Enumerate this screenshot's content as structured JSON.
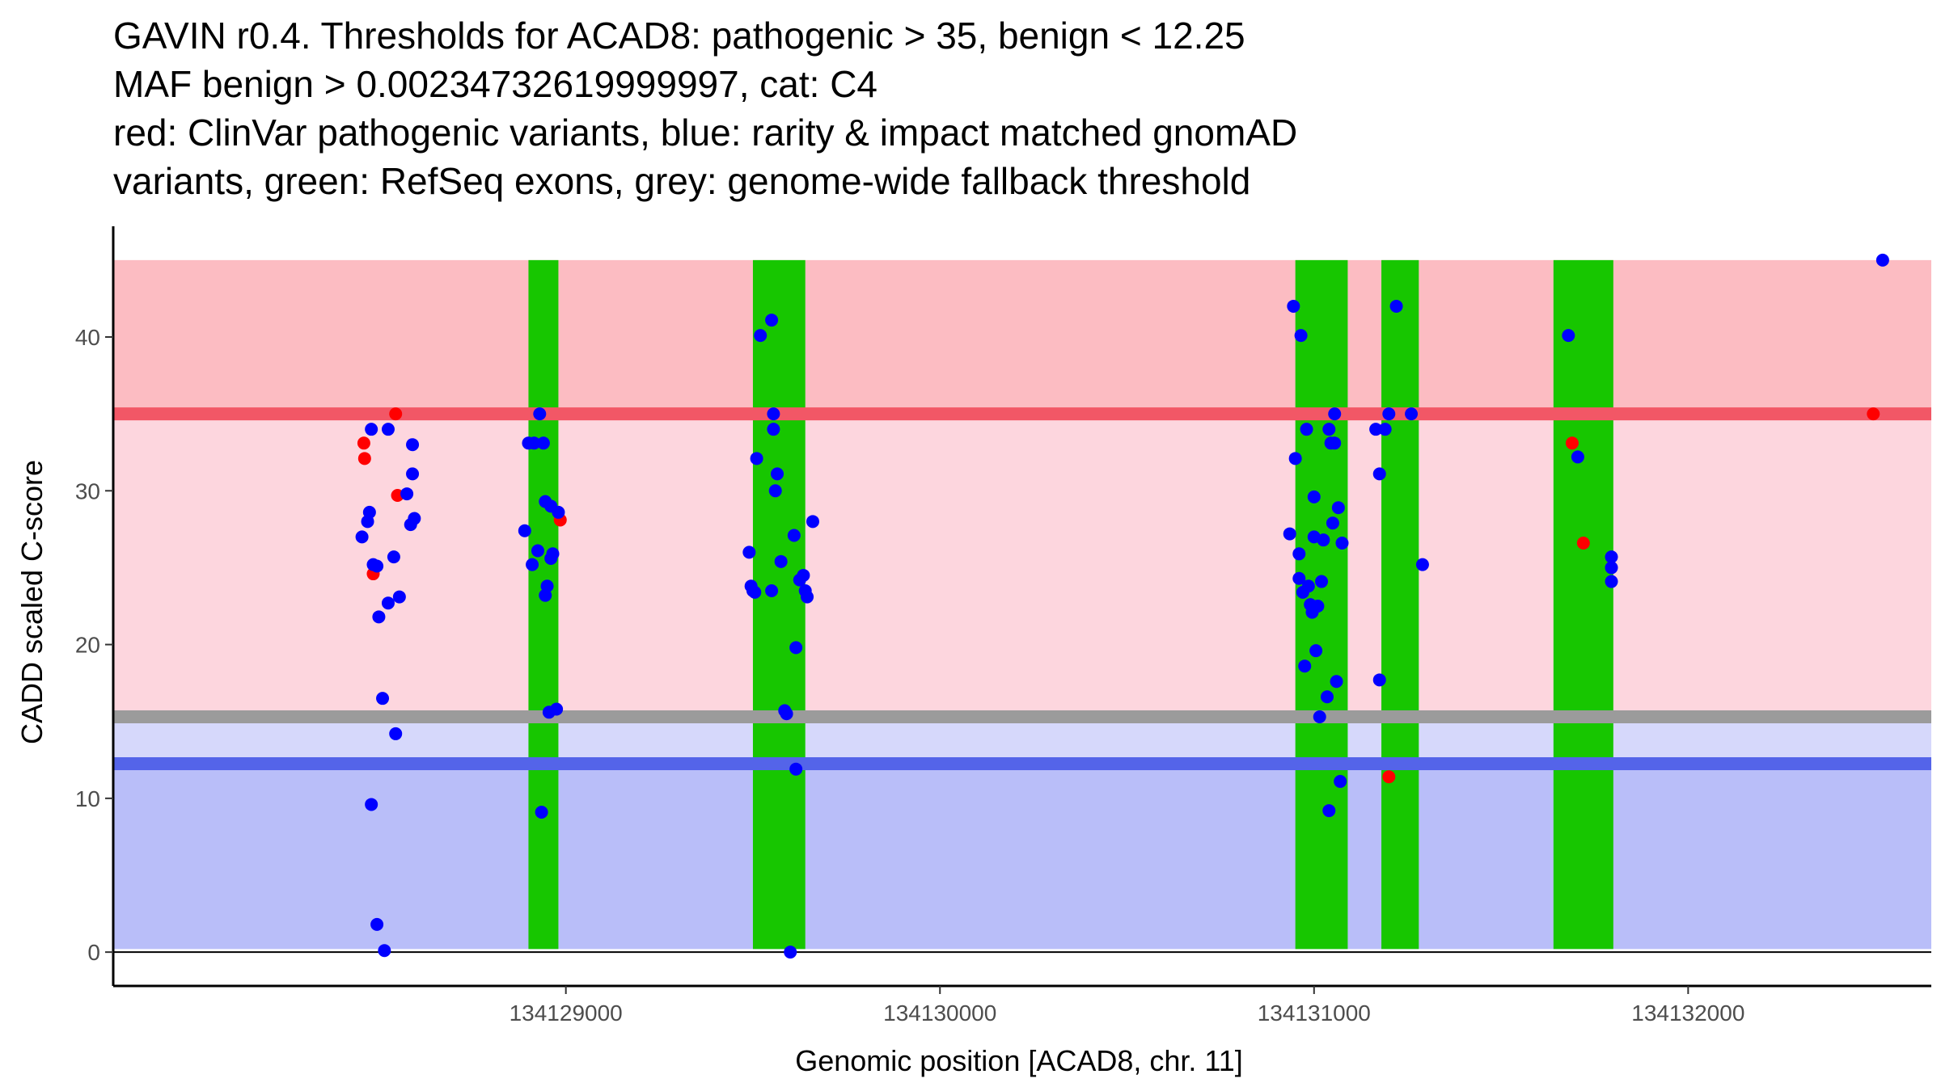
{
  "chart_data": {
    "type": "scatter",
    "title_lines": [
      "GAVIN r0.4. Thresholds for ACAD8: pathogenic > 35, benign < 12.25",
      "MAF benign > 0.00234732619999997, cat: C4",
      "red: ClinVar pathogenic variants, blue: rarity & impact matched gnomAD",
      "variants, green: RefSeq exons, grey: genome-wide fallback threshold"
    ],
    "xlabel": "Genomic position [ACAD8, chr. 11]",
    "ylabel": "CADD scaled C-score",
    "xlim": [
      134127790,
      134132650
    ],
    "ylim": [
      -2.2,
      47.2
    ],
    "x_ticks": [
      {
        "value": 134129000,
        "label": "134129000"
      },
      {
        "value": 134130000,
        "label": "134130000"
      },
      {
        "value": 134131000,
        "label": "134131000"
      },
      {
        "value": 134132000,
        "label": "134132000"
      }
    ],
    "y_ticks": [
      {
        "value": 0,
        "label": "0"
      },
      {
        "value": 10,
        "label": "10"
      },
      {
        "value": 20,
        "label": "20"
      },
      {
        "value": 30,
        "label": "30"
      },
      {
        "value": 40,
        "label": "40"
      }
    ],
    "thresholds": {
      "pathogenic": 35,
      "benign": 12.25,
      "fallback": 15.3,
      "maf_benign": 0.00234732619999997,
      "category": "C4"
    },
    "bands": [
      {
        "name": "pathogenic-region-band",
        "ymin": 35,
        "ymax": 45,
        "color": "#fcbcc2"
      },
      {
        "name": "intermediate-region-band",
        "ymin": 15.3,
        "ymax": 35,
        "color": "#fdd6de"
      },
      {
        "name": "fallback-lower-band",
        "ymin": 12.25,
        "ymax": 15.3,
        "color": "#d6d8fb"
      },
      {
        "name": "benign-region-band",
        "ymin": 0.2,
        "ymax": 12.25,
        "color": "#b9bef9"
      }
    ],
    "threshold_lines": [
      {
        "name": "pathogenic-threshold-line",
        "y": 35,
        "color": "#f25766"
      },
      {
        "name": "fallback-threshold-line",
        "y": 15.3,
        "color": "#9b9b9b"
      },
      {
        "name": "benign-threshold-line",
        "y": 12.25,
        "color": "#5464e9"
      }
    ],
    "exons": [
      {
        "start": 134128900,
        "end": 134128980
      },
      {
        "start": 134129500,
        "end": 134129640
      },
      {
        "start": 134130950,
        "end": 134131090
      },
      {
        "start": 134131180,
        "end": 134131280
      },
      {
        "start": 134131640,
        "end": 134131800
      }
    ],
    "exon_ymin": 0.2,
    "exon_ymax": 45,
    "exon_color": "#17c600",
    "series": [
      {
        "name": "ClinVar pathogenic variants",
        "color": "#ff0000",
        "points": [
          [
            134128460,
            33.1
          ],
          [
            134128462,
            32.1
          ],
          [
            134128485,
            24.6
          ],
          [
            134128545,
            35.0
          ],
          [
            134128550,
            29.7
          ],
          [
            134128985,
            28.1
          ],
          [
            134131200,
            11.4
          ],
          [
            134131690,
            33.1
          ],
          [
            134131720,
            26.6
          ],
          [
            134132495,
            35.0
          ]
        ]
      },
      {
        "name": "rarity & impact matched gnomAD variants",
        "color": "#0000ff",
        "points": [
          [
            134128455,
            27.0
          ],
          [
            134128470,
            28.0
          ],
          [
            134128475,
            28.6
          ],
          [
            134128480,
            34.0
          ],
          [
            134128480,
            9.6
          ],
          [
            134128485,
            25.2
          ],
          [
            134128495,
            1.8
          ],
          [
            134128495,
            25.1
          ],
          [
            134128500,
            21.8
          ],
          [
            134128510,
            16.5
          ],
          [
            134128515,
            0.1
          ],
          [
            134128525,
            34.0
          ],
          [
            134128525,
            22.7
          ],
          [
            134128540,
            25.7
          ],
          [
            134128545,
            14.2
          ],
          [
            134128555,
            23.1
          ],
          [
            134128575,
            29.8
          ],
          [
            134128585,
            27.8
          ],
          [
            134128590,
            31.1
          ],
          [
            134128590,
            33.0
          ],
          [
            134128595,
            28.2
          ],
          [
            134128890,
            27.4
          ],
          [
            134128900,
            33.1
          ],
          [
            134128910,
            25.2
          ],
          [
            134128915,
            33.1
          ],
          [
            134128925,
            26.1
          ],
          [
            134128930,
            35.0
          ],
          [
            134128935,
            9.1
          ],
          [
            134128940,
            33.1
          ],
          [
            134128945,
            29.3
          ],
          [
            134128945,
            23.2
          ],
          [
            134128950,
            23.8
          ],
          [
            134128955,
            15.6
          ],
          [
            134128960,
            29.0
          ],
          [
            134128960,
            25.6
          ],
          [
            134128965,
            25.9
          ],
          [
            134128975,
            15.8
          ],
          [
            134128980,
            28.6
          ],
          [
            134129490,
            26.0
          ],
          [
            134129495,
            23.8
          ],
          [
            134129500,
            23.5
          ],
          [
            134129505,
            23.4
          ],
          [
            134129510,
            32.1
          ],
          [
            134129520,
            40.1
          ],
          [
            134129550,
            23.5
          ],
          [
            134129550,
            41.1
          ],
          [
            134129555,
            35.0
          ],
          [
            134129555,
            34.0
          ],
          [
            134129560,
            30.0
          ],
          [
            134129565,
            31.1
          ],
          [
            134129575,
            25.4
          ],
          [
            134129585,
            15.7
          ],
          [
            134129590,
            15.5
          ],
          [
            134129600,
            0.0
          ],
          [
            134129610,
            27.1
          ],
          [
            134129615,
            11.9
          ],
          [
            134129615,
            19.8
          ],
          [
            134129625,
            24.2
          ],
          [
            134129635,
            24.5
          ],
          [
            134129640,
            23.5
          ],
          [
            134129645,
            23.1
          ],
          [
            134129660,
            28.0
          ],
          [
            134130935,
            27.2
          ],
          [
            134130945,
            42.0
          ],
          [
            134130950,
            32.1
          ],
          [
            134130960,
            24.3
          ],
          [
            134130960,
            25.9
          ],
          [
            134130965,
            40.1
          ],
          [
            134130970,
            23.4
          ],
          [
            134130975,
            18.6
          ],
          [
            134130980,
            34.0
          ],
          [
            134130985,
            23.8
          ],
          [
            134130990,
            22.6
          ],
          [
            134130995,
            22.1
          ],
          [
            134131000,
            29.6
          ],
          [
            134131000,
            27.0
          ],
          [
            134131005,
            19.6
          ],
          [
            134131010,
            22.5
          ],
          [
            134131015,
            15.3
          ],
          [
            134131020,
            24.1
          ],
          [
            134131025,
            26.8
          ],
          [
            134131035,
            16.6
          ],
          [
            134131040,
            9.2
          ],
          [
            134131040,
            34.0
          ],
          [
            134131045,
            33.1
          ],
          [
            134131050,
            27.9
          ],
          [
            134131055,
            33.1
          ],
          [
            134131055,
            35.0
          ],
          [
            134131060,
            17.6
          ],
          [
            134131065,
            28.9
          ],
          [
            134131070,
            11.1
          ],
          [
            134131075,
            26.6
          ],
          [
            134131165,
            34.0
          ],
          [
            134131175,
            31.1
          ],
          [
            134131175,
            17.7
          ],
          [
            134131190,
            34.0
          ],
          [
            134131200,
            35.0
          ],
          [
            134131220,
            42.0
          ],
          [
            134131260,
            35.0
          ],
          [
            134131290,
            25.2
          ],
          [
            134131680,
            40.1
          ],
          [
            134131705,
            32.2
          ],
          [
            134131795,
            25.7
          ],
          [
            134131795,
            25.0
          ],
          [
            134131795,
            24.1
          ],
          [
            134132520,
            45.0
          ]
        ]
      }
    ]
  }
}
